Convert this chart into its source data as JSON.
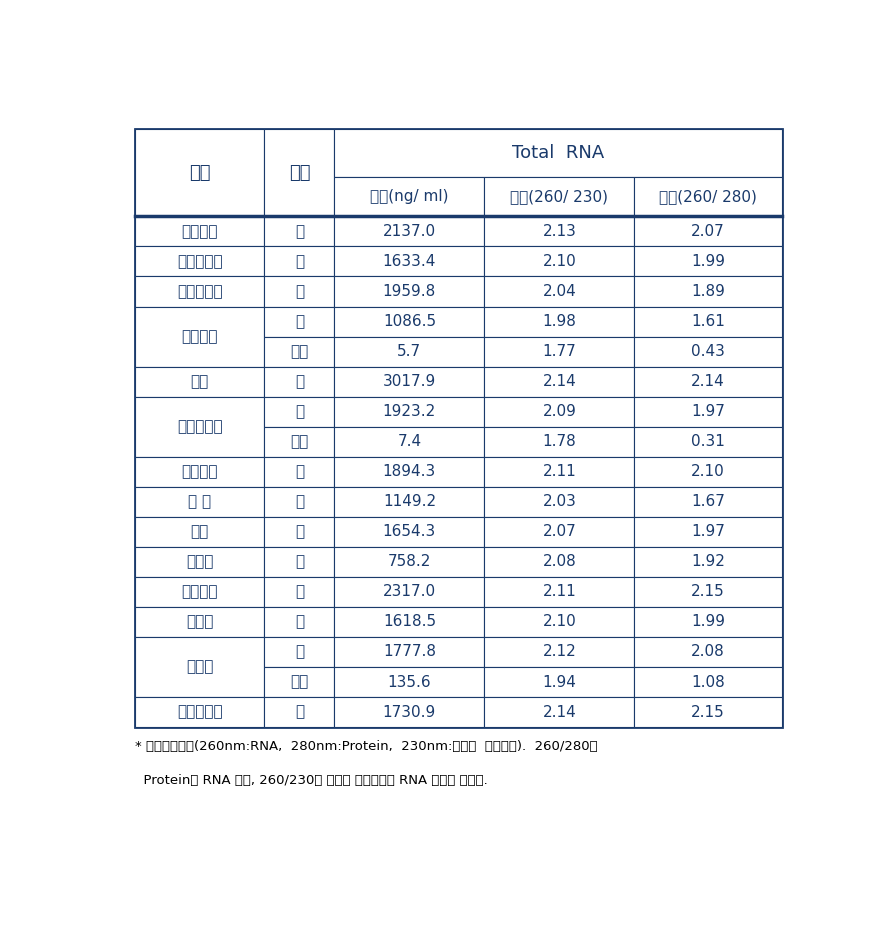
{
  "title": "Total  RNA",
  "rows": [
    {
      "species": "큰유리새",
      "tissue": "간",
      "conc": "2137.0",
      "p260_230": "2.13",
      "p260_280": "2.07",
      "rowspan": 1
    },
    {
      "species": "흰배지빠귀",
      "tissue": "간",
      "conc": "1633.4",
      "p260_230": "2.10",
      "p260_280": "1.99",
      "rowspan": 1
    },
    {
      "species": "호랑지빠귀",
      "tissue": "간",
      "conc": "1959.8",
      "p260_230": "2.04",
      "p260_280": "1.89",
      "rowspan": 1
    },
    {
      "species": "되지빠귀",
      "tissue": "간",
      "conc": "1086.5",
      "p260_230": "1.98",
      "p260_280": "1.61",
      "rowspan": 2
    },
    {
      "species": "",
      "tissue": "혈액",
      "conc": "5.7",
      "p260_230": "1.77",
      "p260_280": "0.43",
      "rowspan": 0
    },
    {
      "species": "딱새",
      "tissue": "간",
      "conc": "3017.9",
      "p260_230": "2.14",
      "p260_280": "2.14",
      "rowspan": 1
    },
    {
      "species": "청딱따구리",
      "tissue": "간",
      "conc": "1923.2",
      "p260_230": "2.09",
      "p260_280": "1.97",
      "rowspan": 2
    },
    {
      "species": "",
      "tissue": "혈액",
      "conc": "7.4",
      "p260_230": "1.78",
      "p260_280": "0.31",
      "rowspan": 0
    },
    {
      "species": "쥐때까치",
      "tissue": "간",
      "conc": "1894.3",
      "p260_230": "2.11",
      "p260_280": "2.10",
      "rowspan": 1
    },
    {
      "species": "숲 새",
      "tissue": "간",
      "conc": "1149.2",
      "p260_230": "2.03",
      "p260_280": "1.67",
      "rowspan": 1
    },
    {
      "species": "어치",
      "tissue": "간",
      "conc": "1654.3",
      "p260_230": "2.07",
      "p260_280": "1.97",
      "rowspan": 1
    },
    {
      "species": "쏙독새",
      "tissue": "간",
      "conc": "758.2",
      "p260_230": "2.08",
      "p260_280": "1.92",
      "rowspan": 1
    },
    {
      "species": "중대백로",
      "tissue": "간",
      "conc": "2317.0",
      "p260_230": "2.11",
      "p260_280": "2.15",
      "rowspan": 1
    },
    {
      "species": "중백로",
      "tissue": "간",
      "conc": "1618.5",
      "p260_230": "2.10",
      "p260_280": "1.99",
      "rowspan": 1
    },
    {
      "species": "왜가리",
      "tissue": "간",
      "conc": "1777.8",
      "p260_230": "2.12",
      "p260_280": "2.08",
      "rowspan": 2
    },
    {
      "species": "",
      "tissue": "혈액",
      "conc": "135.6",
      "p260_230": "1.94",
      "p260_280": "1.08",
      "rowspan": 0
    },
    {
      "species": "괭이갈매기",
      "tissue": "간",
      "conc": "1730.9",
      "p260_230": "2.14",
      "p260_280": "2.15",
      "rowspan": 1
    }
  ],
  "footnote_line1": "* 흡수파장비율(260nm:RNA,  280nm:Protein,  230nm:염이나  유기용매).  260/280은",
  "footnote_line2": "  Protein당 RNA 수치, 260/230은 염이나 유기용매당 RNA 수치를 말한다.",
  "text_color": "#1a3a6b",
  "border_color": "#1a3a6b",
  "bg_color": "#ffffff",
  "thick_lw": 2.0,
  "thin_lw": 0.8
}
